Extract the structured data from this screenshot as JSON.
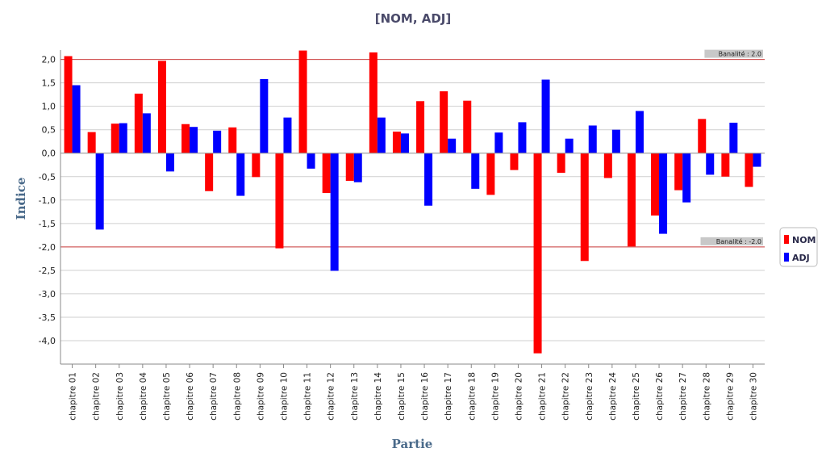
{
  "chart_data": {
    "type": "bar",
    "title": "[NOM, ADJ]",
    "xlabel": "Partie",
    "ylabel": "Indice",
    "ylim": [
      -4.5,
      2.2
    ],
    "yticks": [
      2.0,
      1.5,
      1.0,
      0.5,
      0.0,
      -0.5,
      -1.0,
      -1.5,
      -2.0,
      -2.5,
      -3.0,
      -3.5,
      -4.0
    ],
    "ytick_labels": [
      "2,0",
      "1,5",
      "1,0",
      "0,5",
      "0,0",
      "-0,5",
      "-1,0",
      "-1,5",
      "-2,0",
      "-2,5",
      "-3,0",
      "-3,5",
      "-4,0"
    ],
    "categories": [
      "chapitre 01",
      "chapitre 02",
      "chapitre 03",
      "chapitre 04",
      "chapitre 05",
      "chapitre  06",
      "chapitre 07",
      "chapitre 08",
      "chapitre 09",
      "chapitre 10",
      "chapitre 11",
      "chapitre 12",
      "chapitre 13",
      "chapitre 14",
      "chapitre 15",
      "chapitre 16",
      "chapitre 17",
      "chapitre 18",
      "chapitre 19",
      "chapitre 20",
      "chapitre 21",
      "chapitre 22",
      "chapitre 23",
      "chapitre 24",
      "chapitre 25",
      "chapitre 26",
      "chapitre 27",
      "chapitre 28",
      "chapitre 29",
      "chapitre 30"
    ],
    "series": [
      {
        "name": "NOM",
        "color": "#ff0000",
        "values": [
          2.07,
          0.45,
          0.63,
          1.27,
          1.97,
          0.62,
          -0.81,
          0.55,
          -0.51,
          -2.03,
          2.19,
          -0.85,
          -0.59,
          2.15,
          0.46,
          1.11,
          1.32,
          1.12,
          -0.89,
          -0.36,
          -4.27,
          -0.42,
          -2.3,
          -0.53,
          -1.99,
          -1.33,
          -0.79,
          0.73,
          -0.5,
          -0.72
        ]
      },
      {
        "name": "ADJ",
        "color": "#0000ff",
        "values": [
          1.45,
          -1.63,
          0.64,
          0.85,
          -0.39,
          0.56,
          0.48,
          -0.91,
          1.58,
          0.76,
          -0.33,
          -2.51,
          -0.62,
          0.76,
          0.42,
          -1.12,
          0.31,
          -0.76,
          0.44,
          0.66,
          1.57,
          0.31,
          0.59,
          0.5,
          0.9,
          -1.72,
          -1.05,
          -0.46,
          0.65,
          -0.29
        ]
      }
    ],
    "reference_lines": [
      {
        "value": 2.0,
        "label": "Banalité : 2.0",
        "color": "#d04040"
      },
      {
        "value": -2.0,
        "label": "Banalité : -2.0",
        "color": "#d04040"
      }
    ],
    "grid": true,
    "legend_position": "right"
  }
}
